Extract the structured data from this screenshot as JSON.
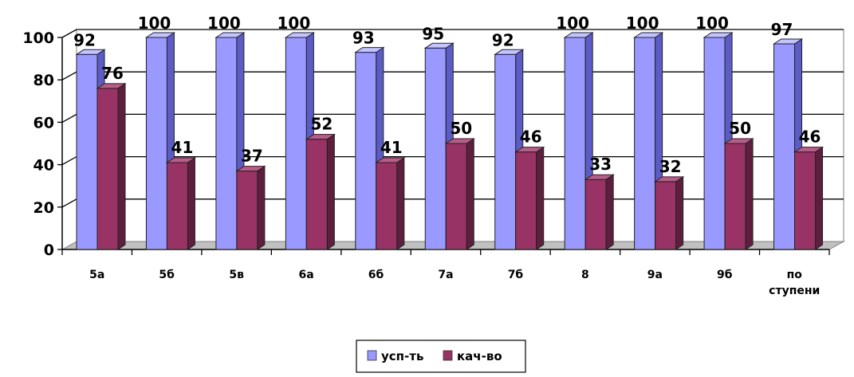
{
  "chart_data": {
    "type": "bar",
    "categories": [
      "5а",
      "5б",
      "5в",
      "6а",
      "6б",
      "7а",
      "7б",
      "8",
      "9а",
      "9б",
      "по ступени"
    ],
    "series": [
      {
        "name": "усп-ть",
        "values": [
          92,
          100,
          100,
          100,
          93,
          95,
          92,
          100,
          100,
          100,
          97
        ],
        "color": "#9999ff",
        "side_color": "#5c5cc6",
        "top_color": "#c3c3ff"
      },
      {
        "name": "кач-во",
        "values": [
          76,
          41,
          37,
          52,
          41,
          50,
          46,
          33,
          32,
          50,
          46
        ],
        "color": "#993366",
        "side_color": "#5e1e3e",
        "top_color": "#b85c8a"
      }
    ],
    "ylim": [
      0,
      100
    ],
    "yticks": [
      "0",
      "20",
      "40",
      "60",
      "80",
      "100"
    ],
    "grid": true,
    "legend_position": "bottom",
    "title": "",
    "xlabel": "",
    "ylabel": ""
  }
}
